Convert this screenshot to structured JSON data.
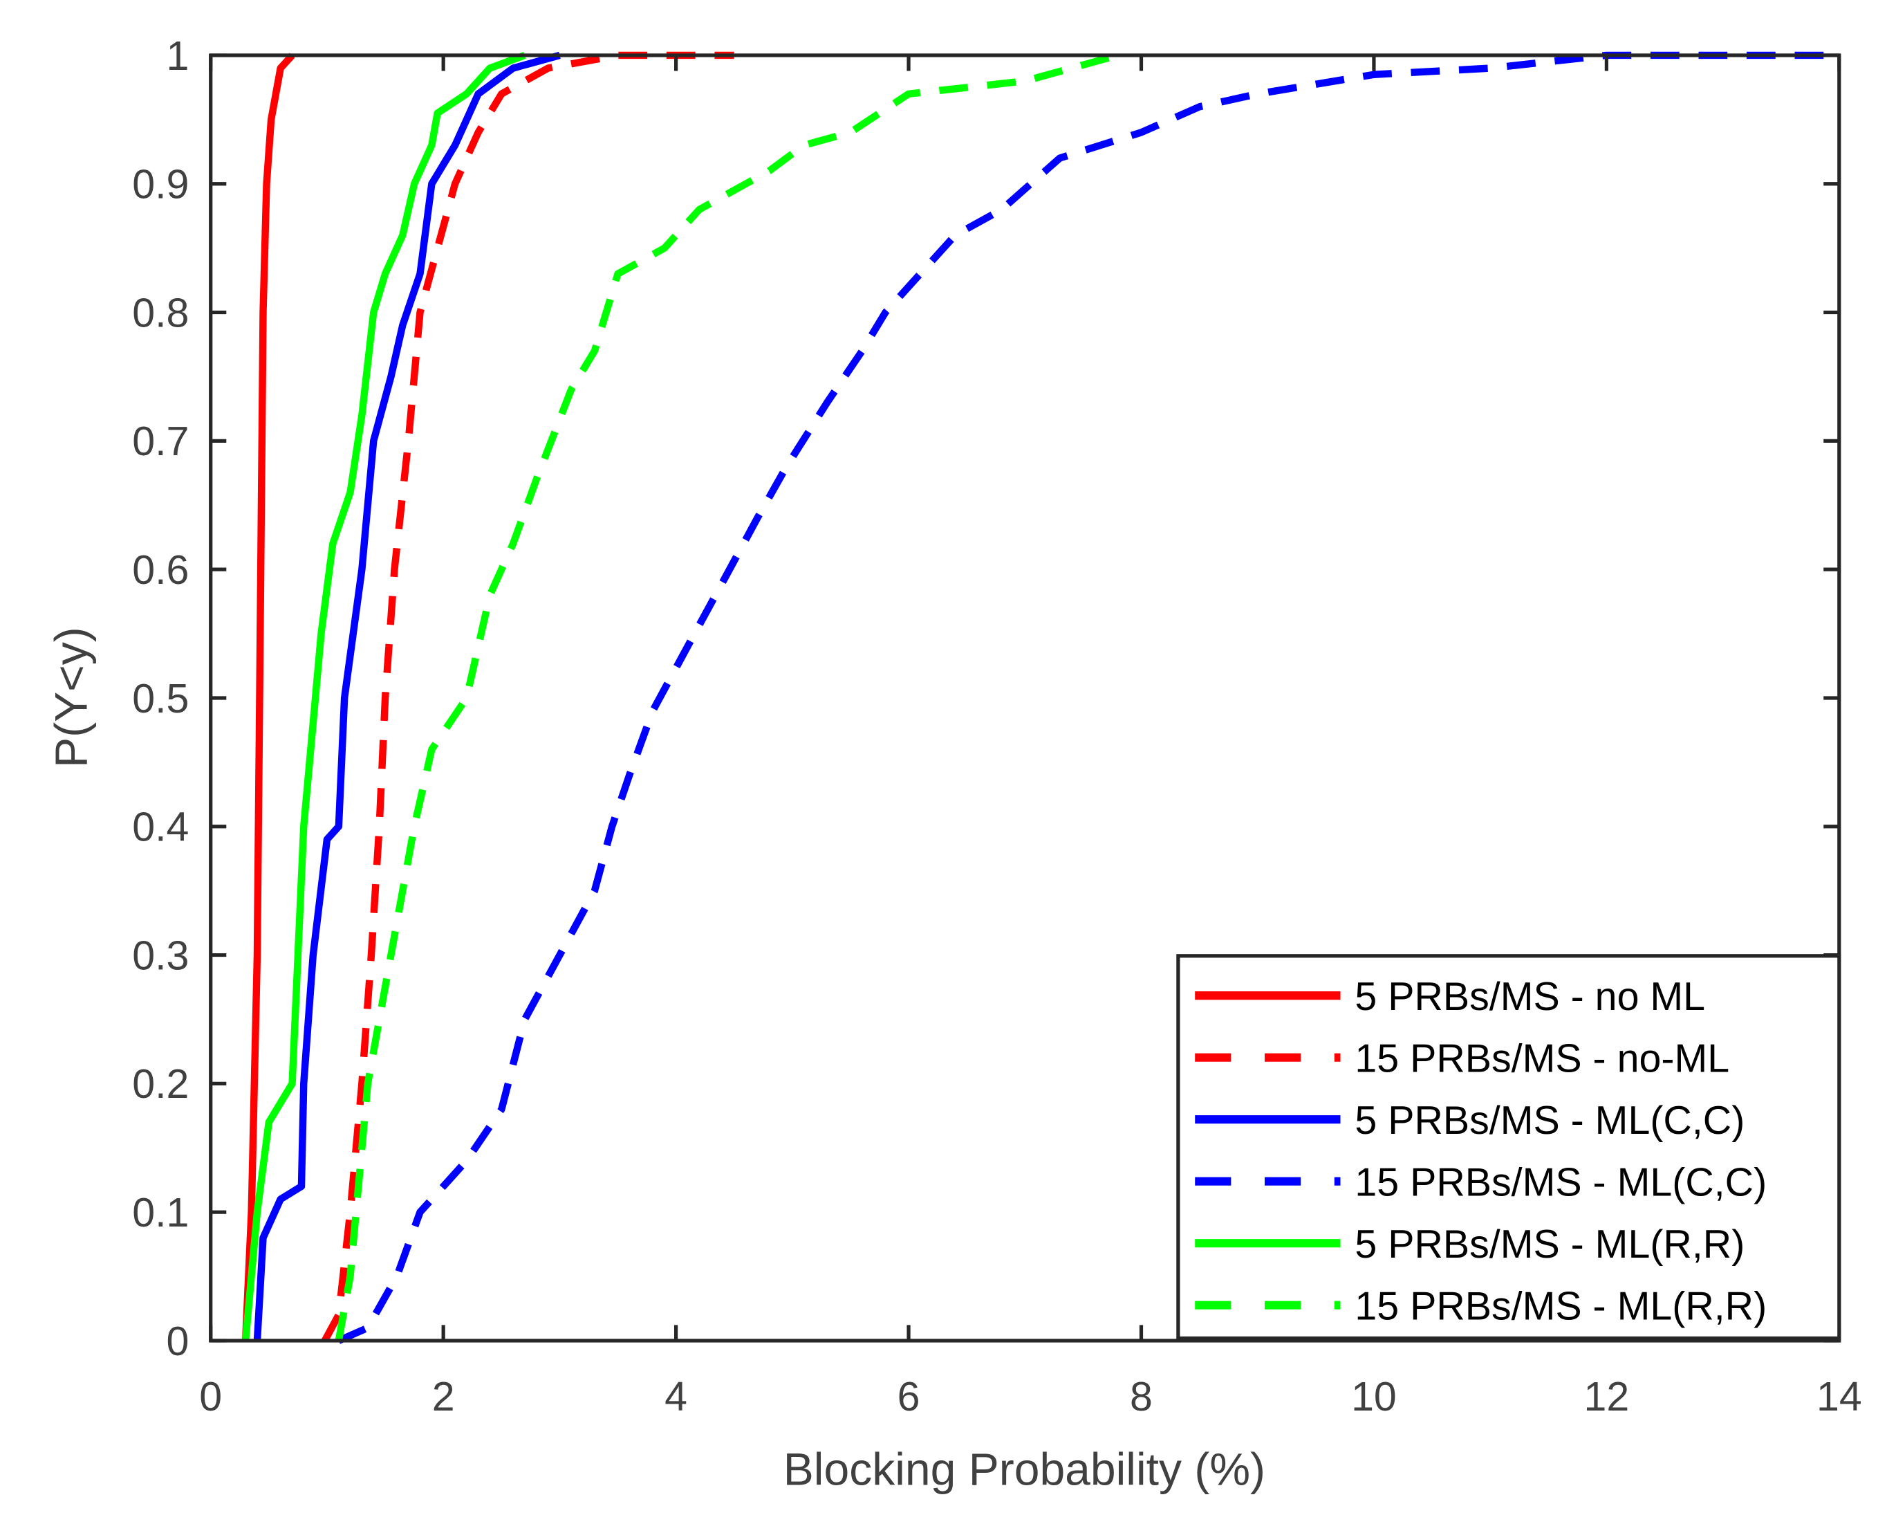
{
  "chart_data": {
    "type": "line",
    "title": "",
    "xlabel": "Blocking Probability (%)",
    "ylabel": "P(Y<y)",
    "xlim": [
      0,
      14
    ],
    "ylim": [
      0,
      1
    ],
    "xticks": [
      0,
      2,
      4,
      6,
      8,
      10,
      12,
      14
    ],
    "yticks": [
      0,
      0.1,
      0.2,
      0.3,
      0.4,
      0.5,
      0.6,
      0.7,
      0.8,
      0.9,
      1
    ],
    "grid": false,
    "legend_position": "bottom-right",
    "series": [
      {
        "name": "5 PRBs/MS - no ML",
        "color": "#ff0000",
        "style": "solid",
        "x": [
          0.3,
          0.35,
          0.4,
          0.42,
          0.45,
          0.48,
          0.52,
          0.6,
          0.7
        ],
        "y": [
          0,
          0.1,
          0.3,
          0.5,
          0.8,
          0.9,
          0.95,
          0.99,
          1
        ]
      },
      {
        "name": "15 PRBs/MS - no-ML",
        "color": "#ff0000",
        "style": "dashed",
        "x": [
          0.98,
          1.1,
          1.2,
          1.3,
          1.38,
          1.45,
          1.5,
          1.58,
          1.7,
          1.8,
          1.95,
          2.1,
          2.3,
          2.5,
          2.9,
          3.5,
          4.5
        ],
        "y": [
          0,
          0.02,
          0.1,
          0.2,
          0.3,
          0.4,
          0.5,
          0.6,
          0.7,
          0.8,
          0.85,
          0.9,
          0.94,
          0.97,
          0.99,
          1,
          1
        ]
      },
      {
        "name": "5 PRBs/MS - ML(C,C)",
        "color": "#0000ff",
        "style": "solid",
        "x": [
          0.4,
          0.45,
          0.6,
          0.78,
          0.8,
          0.88,
          1.0,
          1.1,
          1.15,
          1.3,
          1.4,
          1.55,
          1.65,
          1.8,
          1.9,
          2.1,
          2.3,
          2.6,
          3.0
        ],
        "y": [
          0,
          0.08,
          0.11,
          0.12,
          0.2,
          0.3,
          0.39,
          0.4,
          0.5,
          0.6,
          0.7,
          0.75,
          0.79,
          0.83,
          0.9,
          0.93,
          0.97,
          0.99,
          1
        ]
      },
      {
        "name": "15 PRBs/MS - ML(C,C)",
        "color": "#0000ff",
        "style": "dashed",
        "x": [
          1.1,
          1.35,
          1.6,
          1.8,
          2.2,
          2.5,
          2.7,
          3.0,
          3.3,
          3.45,
          3.6,
          3.8,
          4.1,
          4.4,
          4.7,
          4.95,
          5.3,
          5.6,
          5.8,
          6.4,
          6.8,
          7.3,
          8.0,
          8.5,
          9.0,
          10.0,
          11.0,
          12.0,
          14.0
        ],
        "y": [
          0,
          0.01,
          0.05,
          0.1,
          0.14,
          0.18,
          0.25,
          0.3,
          0.35,
          0.4,
          0.44,
          0.49,
          0.54,
          0.59,
          0.64,
          0.68,
          0.73,
          0.77,
          0.8,
          0.86,
          0.88,
          0.92,
          0.94,
          0.96,
          0.97,
          0.985,
          0.99,
          1,
          1
        ]
      },
      {
        "name": "5 PRBs/MS - ML(R,R)",
        "color": "#00ff00",
        "style": "solid",
        "x": [
          0.3,
          0.4,
          0.5,
          0.7,
          0.75,
          0.8,
          0.9,
          0.95,
          1.05,
          1.2,
          1.3,
          1.4,
          1.5,
          1.65,
          1.75,
          1.9,
          1.95,
          2.2,
          2.4,
          2.7
        ],
        "y": [
          0,
          0.1,
          0.17,
          0.2,
          0.3,
          0.4,
          0.5,
          0.55,
          0.62,
          0.66,
          0.72,
          0.8,
          0.83,
          0.86,
          0.9,
          0.93,
          0.955,
          0.97,
          0.99,
          1
        ]
      },
      {
        "name": "15 PRBs/MS - ML(R,R)",
        "color": "#00ff00",
        "style": "dashed",
        "x": [
          1.1,
          1.2,
          1.35,
          1.55,
          1.75,
          1.9,
          2.2,
          2.4,
          2.6,
          2.8,
          3.1,
          3.3,
          3.5,
          3.9,
          4.2,
          4.8,
          5.1,
          5.5,
          6.0,
          7.0,
          7.8
        ],
        "y": [
          0,
          0.05,
          0.2,
          0.3,
          0.4,
          0.46,
          0.5,
          0.58,
          0.62,
          0.67,
          0.74,
          0.77,
          0.83,
          0.85,
          0.88,
          0.91,
          0.93,
          0.94,
          0.97,
          0.98,
          1
        ]
      }
    ]
  }
}
